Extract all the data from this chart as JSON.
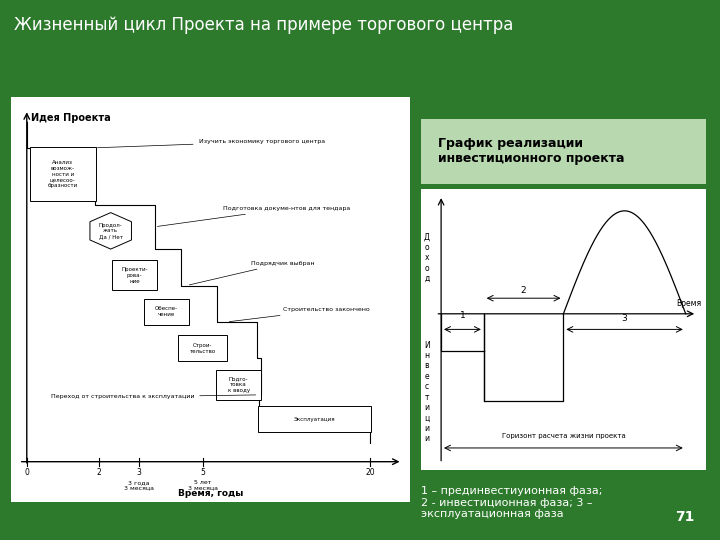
{
  "title": "Жизненный цикл Проекта на примере торгового центра",
  "bg_color": "#2d7a2d",
  "title_color": "#ffffff",
  "slide_number": "71",
  "left_panel": {
    "bg": "#ffffff",
    "idea_label": "Идея Проекта",
    "xlabel": "Время, годы"
  },
  "right_panel": {
    "bg": "#ffffff",
    "title": "График реализации\nинвестиционного проекта",
    "title_color": "#000000",
    "title_bg": "#c8e6c8",
    "ylabel_top": "Д\nо\nх\nо\nд",
    "ylabel_bottom": "И\nн\nв\nе\nс\nт\nи\nц\nи\nи",
    "xlabel": "Время",
    "horizon_label": "Горизонт расчета жизни проекта",
    "phase1_label": "1",
    "phase2_label": "2",
    "phase3_label": "3"
  },
  "legend_text": "1 – прединвестиуионная фаза;\n2 - инвестиционная фаза; 3 –\nэксплуатационная фаза"
}
